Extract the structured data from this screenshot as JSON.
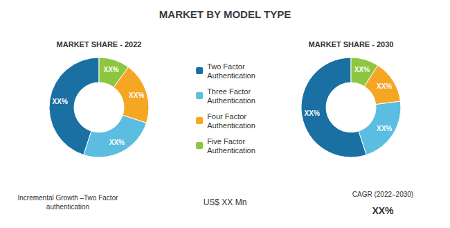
{
  "title": "MARKET BY MODEL TYPE",
  "annotations": [
    "Incremental Growth –Two Factor\nauthentication",
    "US$ XX Mn",
    "CAGR (2022–2030)",
    "XX%"
  ],
  "chart_data": [
    {
      "type": "pie",
      "title": "MARKET SHARE - 2022",
      "categories": [
        "Two Factor\nAuthentication",
        "Three Factor\nAuthentication",
        "Four Factor\nAuthentication",
        "Five Factor\nAuthentication"
      ],
      "values": [
        45,
        25,
        20,
        10
      ],
      "value_labels": [
        "XX%",
        "XX%",
        "XX%",
        "XX%"
      ],
      "colors": [
        "#1a6fa3",
        "#5bbde0",
        "#f5a623",
        "#8dc63f"
      ],
      "data_labels": true,
      "legend": "center"
    },
    {
      "type": "pie",
      "title": "MARKET SHARE - 2030",
      "categories": [
        "Two Factor\nAuthentication",
        "Three Factor\nAuthentication",
        "Four Factor\nAuthentication",
        "Five Factor\nAuthentication"
      ],
      "values": [
        55,
        22,
        14,
        9
      ],
      "value_labels": [
        "XX%",
        "XX%",
        "XX%",
        "XX%"
      ],
      "colors": [
        "#1a6fa3",
        "#5bbde0",
        "#f5a623",
        "#8dc63f"
      ],
      "data_labels": true,
      "legend": "center"
    }
  ]
}
